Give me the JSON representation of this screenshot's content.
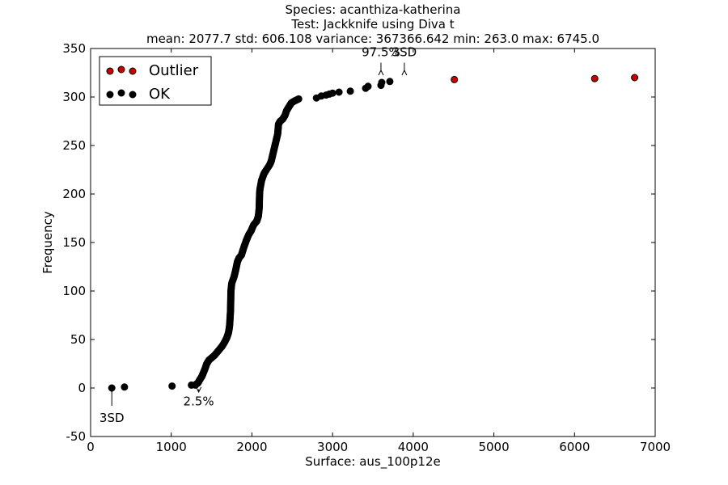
{
  "chart_data": {
    "type": "scatter",
    "title_lines": [
      "Species: acanthiza-katherina",
      "Test: Jackknife using Diva t",
      "mean: 2077.7  std: 606.108  variance: 367366.642  min: 263.0  max: 6745.0"
    ],
    "xlabel": "Surface: aus_100p12e",
    "ylabel": "Frequency",
    "xlim": [
      0,
      7000
    ],
    "ylim": [
      -50,
      350
    ],
    "xticks": [
      0,
      1000,
      2000,
      3000,
      4000,
      5000,
      6000,
      7000
    ],
    "yticks": [
      -50,
      0,
      50,
      100,
      150,
      200,
      250,
      300,
      350
    ],
    "grid": false,
    "legend": {
      "position": "top-left",
      "entries": [
        {
          "label": "Outlier",
          "color": "#cc0000"
        },
        {
          "label": "OK",
          "color": "#000000"
        }
      ]
    },
    "series": [
      {
        "name": "Outlier",
        "color": "#cc0000",
        "points": [
          [
            4510,
            318
          ],
          [
            6250,
            319
          ],
          [
            6745,
            320
          ]
        ]
      },
      {
        "name": "OK",
        "color": "#000000",
        "segments": [
          [
            [
              1310,
              4
            ],
            [
              1330,
              5
            ],
            [
              1350,
              8
            ],
            [
              1380,
              12
            ],
            [
              1400,
              16
            ],
            [
              1420,
              20
            ],
            [
              1440,
              25
            ],
            [
              1470,
              29
            ],
            [
              1500,
              31
            ],
            [
              1540,
              34
            ],
            [
              1580,
              38
            ],
            [
              1600,
              40
            ],
            [
              1630,
              43
            ],
            [
              1660,
              47
            ],
            [
              1690,
              52
            ],
            [
              1710,
              57
            ],
            [
              1720,
              62
            ],
            [
              1725,
              66
            ],
            [
              1735,
              80
            ],
            [
              1740,
              100
            ],
            [
              1750,
              108
            ],
            [
              1780,
              115
            ],
            [
              1800,
              122
            ],
            [
              1820,
              130
            ],
            [
              1840,
              134
            ],
            [
              1870,
              137
            ],
            [
              1900,
              145
            ],
            [
              1930,
              152
            ],
            [
              1960,
              158
            ],
            [
              1990,
              162
            ],
            [
              2020,
              168
            ],
            [
              2060,
              172
            ],
            [
              2080,
              177
            ],
            [
              2090,
              185
            ],
            [
              2095,
              200
            ],
            [
              2100,
              205
            ],
            [
              2120,
              214
            ],
            [
              2150,
              221
            ],
            [
              2180,
              225
            ],
            [
              2220,
              230
            ],
            [
              2240,
              234
            ],
            [
              2260,
              241
            ],
            [
              2280,
              248
            ],
            [
              2300,
              255
            ],
            [
              2320,
              262
            ],
            [
              2330,
              272
            ],
            [
              2350,
              275
            ],
            [
              2380,
              277
            ],
            [
              2410,
              281
            ],
            [
              2430,
              286
            ],
            [
              2460,
              290
            ],
            [
              2490,
              294
            ],
            [
              2530,
              296
            ],
            [
              2580,
              298
            ]
          ]
        ],
        "points": [
          [
            263,
            0
          ],
          [
            420,
            1
          ],
          [
            1010,
            2
          ],
          [
            1250,
            3
          ],
          [
            1300,
            3
          ],
          [
            2800,
            299
          ],
          [
            2860,
            301
          ],
          [
            2920,
            302
          ],
          [
            2960,
            303
          ],
          [
            3000,
            304
          ],
          [
            3080,
            305
          ],
          [
            3220,
            306
          ],
          [
            3410,
            309
          ],
          [
            3440,
            311
          ],
          [
            3600,
            312
          ],
          [
            3610,
            315
          ],
          [
            3710,
            316
          ]
        ]
      }
    ],
    "annotations": [
      {
        "text": "3SD",
        "x": 263,
        "y": 0,
        "label_x": 263,
        "label_y": -35
      },
      {
        "text": "2.5%",
        "x": 1340,
        "y": 0,
        "label_x": 1340,
        "label_y": -18
      },
      {
        "text": "97.5%",
        "x": 3600,
        "y": 320,
        "label_x": 3600,
        "label_y": 342
      },
      {
        "text": "3SD",
        "x": 3890,
        "y": 320,
        "label_x": 3890,
        "label_y": 342
      }
    ]
  }
}
